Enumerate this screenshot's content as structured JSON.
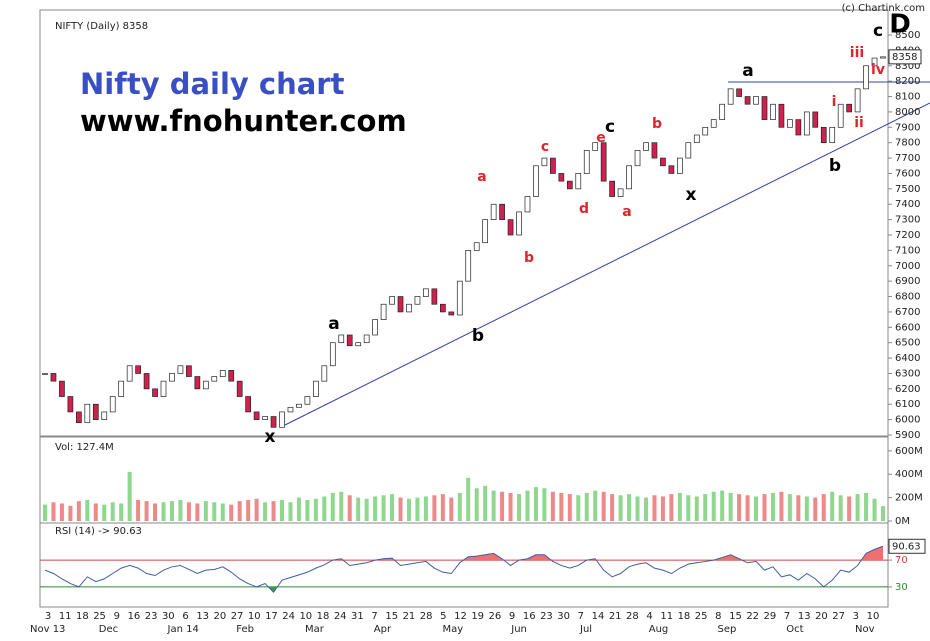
{
  "header": {
    "symbol": "NIFTY (Daily) 8358",
    "credit": "(c) Chartink.com",
    "headline": "Nifty daily chart",
    "site": "www.fnohunter.com"
  },
  "chart_data": [
    {
      "type": "candlestick",
      "last_label": "8358",
      "values": [
        6300,
        6250,
        6150,
        6050,
        5980,
        6100,
        6000,
        6050,
        6150,
        6250,
        6350,
        6300,
        6200,
        6150,
        6250,
        6300,
        6350,
        6280,
        6200,
        6250,
        6280,
        6320,
        6250,
        6150,
        6050,
        6000,
        6020,
        5950,
        6050,
        6080,
        6100,
        6150,
        6250,
        6350,
        6500,
        6550,
        6480,
        6500,
        6550,
        6650,
        6750,
        6800,
        6700,
        6750,
        6800,
        6850,
        6750,
        6700,
        6680,
        6900,
        7100,
        7150,
        7300,
        7400,
        7300,
        7200,
        7350,
        7450,
        7650,
        7700,
        7600,
        7550,
        7500,
        7600,
        7750,
        7800,
        7550,
        7450,
        7500,
        7650,
        7750,
        7800,
        7700,
        7650,
        7600,
        7700,
        7800,
        7850,
        7900,
        7950,
        8050,
        8150,
        8100,
        8050,
        8100,
        7950,
        8050,
        7900,
        7950,
        7850,
        8000,
        7900,
        7800,
        7900,
        8050,
        8000,
        8150,
        8300,
        8350,
        8358
      ],
      "up_color": "#ffffff",
      "down_color": "#d0204f",
      "ylim": [
        5900,
        8500
      ],
      "yticks": [
        5900,
        6000,
        6100,
        6200,
        6300,
        6400,
        6500,
        6600,
        6700,
        6800,
        6900,
        7000,
        7100,
        7200,
        7300,
        7400,
        7500,
        7600,
        7700,
        7800,
        7900,
        8000,
        8100,
        8200,
        8300,
        8400,
        8500
      ],
      "annotations": [
        {
          "text": "x",
          "color": "#000000"
        },
        {
          "text": "a",
          "color": "#000000"
        },
        {
          "text": "b",
          "color": "#000000"
        },
        {
          "text": "c",
          "color": "#000000"
        },
        {
          "text": "x",
          "color": "#000000"
        },
        {
          "text": "a",
          "color": "#000000"
        },
        {
          "text": "b",
          "color": "#000000"
        },
        {
          "text": "c",
          "color": "#000000"
        },
        {
          "text": "D",
          "color": "#000000"
        },
        {
          "text": "a",
          "color": "#e0242c"
        },
        {
          "text": "b",
          "color": "#e0242c"
        },
        {
          "text": "c",
          "color": "#e0242c"
        },
        {
          "text": "d",
          "color": "#e0242c"
        },
        {
          "text": "e",
          "color": "#e0242c"
        },
        {
          "text": "a",
          "color": "#e0242c"
        },
        {
          "text": "b",
          "color": "#e0242c"
        },
        {
          "text": "i",
          "color": "#e0242c"
        },
        {
          "text": "ii",
          "color": "#e0242c"
        },
        {
          "text": "iii",
          "color": "#e0242c"
        },
        {
          "text": "iv",
          "color": "#e0242c"
        }
      ]
    },
    {
      "type": "bar",
      "title": "Vol: 127.4M",
      "values": [
        140,
        160,
        150,
        130,
        170,
        180,
        150,
        140,
        160,
        150,
        420,
        180,
        170,
        150,
        160,
        170,
        180,
        160,
        150,
        170,
        160,
        150,
        140,
        170,
        180,
        190,
        160,
        170,
        180,
        160,
        200,
        180,
        190,
        210,
        240,
        250,
        220,
        200,
        190,
        210,
        220,
        230,
        200,
        190,
        200,
        210,
        220,
        230,
        200,
        240,
        370,
        280,
        300,
        260,
        250,
        240,
        230,
        260,
        290,
        280,
        250,
        240,
        230,
        220,
        240,
        260,
        250,
        230,
        220,
        230,
        210,
        200,
        220,
        210,
        230,
        240,
        220,
        210,
        230,
        250,
        260,
        240,
        230,
        220,
        210,
        230,
        240,
        250,
        230,
        220,
        210,
        200,
        230,
        250,
        220,
        210,
        230,
        240,
        190,
        127.4
      ],
      "up_color": "#8fd68f",
      "down_color": "#ec8a8a",
      "ylim": [
        0,
        650
      ],
      "yticks": [
        {
          "value": 0,
          "label": "0M"
        },
        {
          "value": 200,
          "label": "200M"
        },
        {
          "value": 400,
          "label": "400M"
        },
        {
          "value": 600,
          "label": "600M"
        }
      ]
    },
    {
      "type": "line",
      "title": "RSI (14) -> 90.63",
      "last_label": "90.63",
      "color": "#3a5fa8",
      "values": [
        55,
        50,
        42,
        35,
        30,
        45,
        38,
        42,
        50,
        58,
        62,
        58,
        50,
        47,
        55,
        60,
        62,
        56,
        50,
        55,
        56,
        60,
        52,
        42,
        35,
        30,
        35,
        22,
        40,
        44,
        48,
        52,
        58,
        63,
        70,
        72,
        62,
        64,
        66,
        70,
        72,
        73,
        62,
        64,
        66,
        68,
        58,
        52,
        50,
        66,
        75,
        76,
        78,
        80,
        72,
        62,
        70,
        72,
        78,
        78,
        68,
        62,
        58,
        62,
        70,
        72,
        55,
        45,
        50,
        60,
        64,
        66,
        58,
        55,
        50,
        58,
        64,
        66,
        68,
        70,
        74,
        78,
        72,
        66,
        68,
        55,
        60,
        45,
        48,
        40,
        50,
        42,
        30,
        40,
        55,
        52,
        62,
        80,
        86,
        90.63
      ],
      "ylim": [
        0,
        100
      ],
      "yticks": [
        30,
        70
      ],
      "xtick_labels": [
        "3",
        "11",
        "18",
        "25",
        "9",
        "16",
        "23",
        "30",
        "6",
        "13",
        "20",
        "27",
        "10",
        "17",
        "24",
        "10",
        "18",
        "24",
        "31",
        "7",
        "15",
        "21",
        "28",
        "5",
        "12",
        "19",
        "26",
        "9",
        "16",
        "23",
        "30",
        "7",
        "14",
        "21",
        "28",
        "4",
        "11",
        "18",
        "25",
        "8",
        "15",
        "22",
        "29",
        "7",
        "13",
        "20",
        "27",
        "3",
        "10"
      ],
      "month_labels": [
        "Nov 13",
        "Dec",
        "Jan 14",
        "Feb",
        "Mar",
        "Apr",
        "May",
        "Jun",
        "Jul",
        "Aug",
        "Sep",
        "Oct",
        "Nov"
      ]
    }
  ]
}
